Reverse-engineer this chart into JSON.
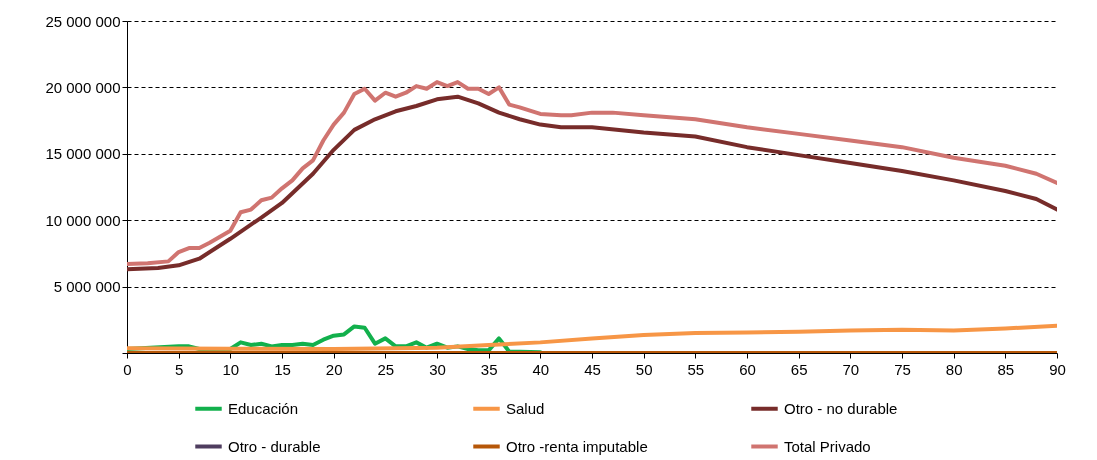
{
  "chart_data": {
    "type": "line",
    "xlim": [
      0,
      90
    ],
    "xticks": [
      0,
      5,
      10,
      15,
      20,
      25,
      30,
      35,
      40,
      45,
      50,
      55,
      60,
      65,
      70,
      75,
      80,
      85,
      90
    ],
    "ylim": [
      0,
      25000000
    ],
    "yticks": [
      {
        "value": 0,
        "label": null
      },
      {
        "value": 5000000,
        "label": "5 000 000"
      },
      {
        "value": 10000000,
        "label": "10 000 000"
      },
      {
        "value": 15000000,
        "label": "15 000 000"
      },
      {
        "value": 20000000,
        "label": "20 000 000"
      },
      {
        "value": 25000000,
        "label": "25 000 000"
      }
    ],
    "grid": "y",
    "legend": "bottom",
    "series": [
      {
        "name": "Educación",
        "color": "#12b04c",
        "x": [
          0,
          5,
          6,
          7,
          10,
          11,
          12,
          13,
          14,
          15,
          16,
          17,
          18,
          19,
          20,
          21,
          22,
          23,
          24,
          25,
          26,
          27,
          28,
          29,
          30,
          31,
          32,
          33,
          34,
          35,
          36,
          37,
          38,
          40
        ],
        "values": [
          300000,
          500000,
          500000,
          300000,
          300000,
          800000,
          600000,
          700000,
          500000,
          600000,
          600000,
          700000,
          600000,
          1000000,
          1300000,
          1400000,
          2000000,
          1900000,
          700000,
          1100000,
          500000,
          500000,
          800000,
          400000,
          700000,
          400000,
          500000,
          300000,
          200000,
          200000,
          1100000,
          100000,
          100000,
          50000
        ]
      },
      {
        "name": "Salud",
        "color": "#f79646",
        "x": [
          0,
          10,
          20,
          30,
          35,
          40,
          45,
          50,
          55,
          60,
          65,
          70,
          75,
          80,
          85,
          90
        ],
        "values": [
          350000,
          320000,
          300000,
          400000,
          600000,
          800000,
          1100000,
          1350000,
          1500000,
          1550000,
          1600000,
          1700000,
          1750000,
          1700000,
          1850000,
          2050000
        ]
      },
      {
        "name": "Otro - no durable",
        "color": "#772c2a",
        "x": [
          0,
          3,
          5,
          7,
          10,
          13,
          15,
          18,
          20,
          22,
          24,
          26,
          28,
          30,
          32,
          34,
          36,
          38,
          40,
          42,
          45,
          50,
          55,
          60,
          65,
          70,
          75,
          80,
          85,
          88,
          90
        ],
        "values": [
          6300000,
          6400000,
          6600000,
          7100000,
          8600000,
          10200000,
          11300000,
          13500000,
          15300000,
          16800000,
          17600000,
          18200000,
          18600000,
          19100000,
          19300000,
          18800000,
          18100000,
          17600000,
          17200000,
          17000000,
          17000000,
          16600000,
          16300000,
          15500000,
          14900000,
          14300000,
          13700000,
          13000000,
          12200000,
          11600000,
          10800000
        ]
      },
      {
        "name": "Otro - durable",
        "color": "#4f3d5f",
        "values": [
          null
        ]
      },
      {
        "name": "Otro -renta imputable",
        "color": "#b65708",
        "x": [
          0,
          90
        ],
        "values": [
          0,
          0
        ]
      },
      {
        "name": "Total Privado",
        "color": "#d07470",
        "x": [
          0,
          2,
          4,
          5,
          6,
          7,
          8,
          10,
          11,
          12,
          13,
          14,
          15,
          16,
          17,
          18,
          19,
          20,
          21,
          22,
          23,
          24,
          25,
          26,
          27,
          28,
          29,
          30,
          31,
          32,
          33,
          34,
          35,
          36,
          37,
          38,
          40,
          42,
          43,
          45,
          47,
          50,
          55,
          60,
          65,
          70,
          75,
          80,
          85,
          88,
          90
        ],
        "values": [
          6700000,
          6750000,
          6900000,
          7600000,
          7900000,
          7900000,
          8300000,
          9200000,
          10600000,
          10800000,
          11500000,
          11700000,
          12400000,
          13000000,
          13900000,
          14500000,
          16000000,
          17200000,
          18100000,
          19500000,
          19900000,
          19000000,
          19600000,
          19300000,
          19600000,
          20100000,
          19900000,
          20400000,
          20100000,
          20400000,
          19900000,
          19900000,
          19500000,
          20000000,
          18700000,
          18500000,
          18000000,
          17900000,
          17900000,
          18100000,
          18100000,
          17900000,
          17600000,
          17000000,
          16500000,
          16000000,
          15500000,
          14700000,
          14100000,
          13500000,
          12800000
        ]
      }
    ]
  }
}
